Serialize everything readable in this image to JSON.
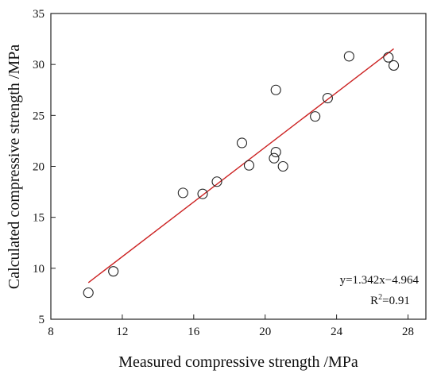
{
  "chart_data": {
    "type": "scatter",
    "xlabel": "Measured compressive strength /MPa",
    "ylabel": "Calculated compressive strength /MPa",
    "xlim": [
      8,
      29
    ],
    "ylim": [
      5,
      35
    ],
    "xticks": [
      8,
      12,
      16,
      20,
      24,
      28
    ],
    "yticks": [
      5,
      10,
      15,
      20,
      25,
      30,
      35
    ],
    "grid": false,
    "points": [
      {
        "x": 10.1,
        "y": 7.6
      },
      {
        "x": 11.5,
        "y": 9.7
      },
      {
        "x": 15.4,
        "y": 17.4
      },
      {
        "x": 16.5,
        "y": 17.3
      },
      {
        "x": 17.3,
        "y": 18.5
      },
      {
        "x": 18.7,
        "y": 22.3
      },
      {
        "x": 19.1,
        "y": 20.1
      },
      {
        "x": 20.5,
        "y": 20.8
      },
      {
        "x": 20.6,
        "y": 21.4
      },
      {
        "x": 20.6,
        "y": 27.5
      },
      {
        "x": 21.0,
        "y": 20.0
      },
      {
        "x": 22.8,
        "y": 24.9
      },
      {
        "x": 23.5,
        "y": 26.7
      },
      {
        "x": 24.7,
        "y": 30.8
      },
      {
        "x": 26.9,
        "y": 30.7
      },
      {
        "x": 27.2,
        "y": 29.9
      }
    ],
    "fit_line": {
      "slope": 1.342,
      "intercept": -4.964,
      "x_range": [
        10.1,
        27.2
      ],
      "color": "#cc2222"
    },
    "annotation": {
      "equation": "y=1.342x−4.964",
      "r2_prefix": "R",
      "r2_sup": "2",
      "r2_value": "=0.91"
    },
    "marker_color": "#222222"
  }
}
